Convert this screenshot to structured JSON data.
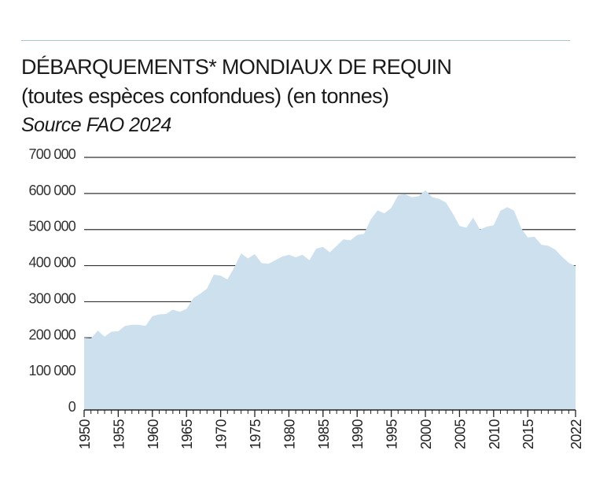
{
  "header": {
    "title": "DÉBARQUEMENTS* MONDIAUX DE REQUIN",
    "subtitle": "(toutes espèces confondues) (en tonnes)",
    "source": "Source FAO 2024"
  },
  "chart_data": {
    "type": "area",
    "ylim": [
      0,
      700000
    ],
    "xlim": [
      1950,
      2022
    ],
    "grid": true,
    "fill_color": "#cde0ed",
    "grid_color": "#333333",
    "y_tick_values": [
      0,
      100000,
      200000,
      300000,
      400000,
      500000,
      600000,
      700000
    ],
    "y_tick_labels": [
      "0",
      "100 000",
      "200 000",
      "300 000",
      "400 000",
      "500 000",
      "600 000",
      "700 000"
    ],
    "x_tick_values": [
      1950,
      1955,
      1960,
      1965,
      1970,
      1975,
      1980,
      1985,
      1990,
      1995,
      2000,
      2005,
      2010,
      2015,
      2022
    ],
    "x_tick_labels": [
      "1950",
      "1955",
      "1960",
      "1965",
      "1970",
      "1975",
      "1980",
      "1985",
      "1990",
      "1995",
      "2000",
      "2005",
      "2010",
      "2015",
      "2022"
    ],
    "x": [
      1950,
      1951,
      1952,
      1953,
      1954,
      1955,
      1956,
      1957,
      1958,
      1959,
      1960,
      1961,
      1962,
      1963,
      1964,
      1965,
      1966,
      1967,
      1968,
      1969,
      1970,
      1971,
      1972,
      1973,
      1974,
      1975,
      1976,
      1977,
      1978,
      1979,
      1980,
      1981,
      1982,
      1983,
      1984,
      1985,
      1986,
      1987,
      1988,
      1989,
      1990,
      1991,
      1992,
      1993,
      1994,
      1995,
      1996,
      1997,
      1998,
      1999,
      2000,
      2001,
      2002,
      2003,
      2004,
      2005,
      2006,
      2007,
      2008,
      2009,
      2010,
      2011,
      2012,
      2013,
      2014,
      2015,
      2016,
      2017,
      2018,
      2019,
      2020,
      2021,
      2022
    ],
    "values": [
      200000,
      198000,
      220000,
      203000,
      217000,
      218000,
      233000,
      236000,
      236000,
      233000,
      260000,
      265000,
      266000,
      278000,
      272000,
      280000,
      310000,
      322000,
      336000,
      375000,
      372000,
      362000,
      395000,
      434000,
      420000,
      432000,
      407000,
      405000,
      415000,
      425000,
      430000,
      423000,
      430000,
      415000,
      447000,
      452000,
      437000,
      455000,
      473000,
      470000,
      485000,
      488000,
      528000,
      553000,
      545000,
      560000,
      595000,
      598000,
      590000,
      592000,
      609000,
      590000,
      585000,
      575000,
      545000,
      510000,
      505000,
      533000,
      500000,
      508000,
      512000,
      552000,
      562000,
      552000,
      505000,
      478000,
      480000,
      458000,
      455000,
      445000,
      425000,
      408000,
      398000
    ]
  }
}
